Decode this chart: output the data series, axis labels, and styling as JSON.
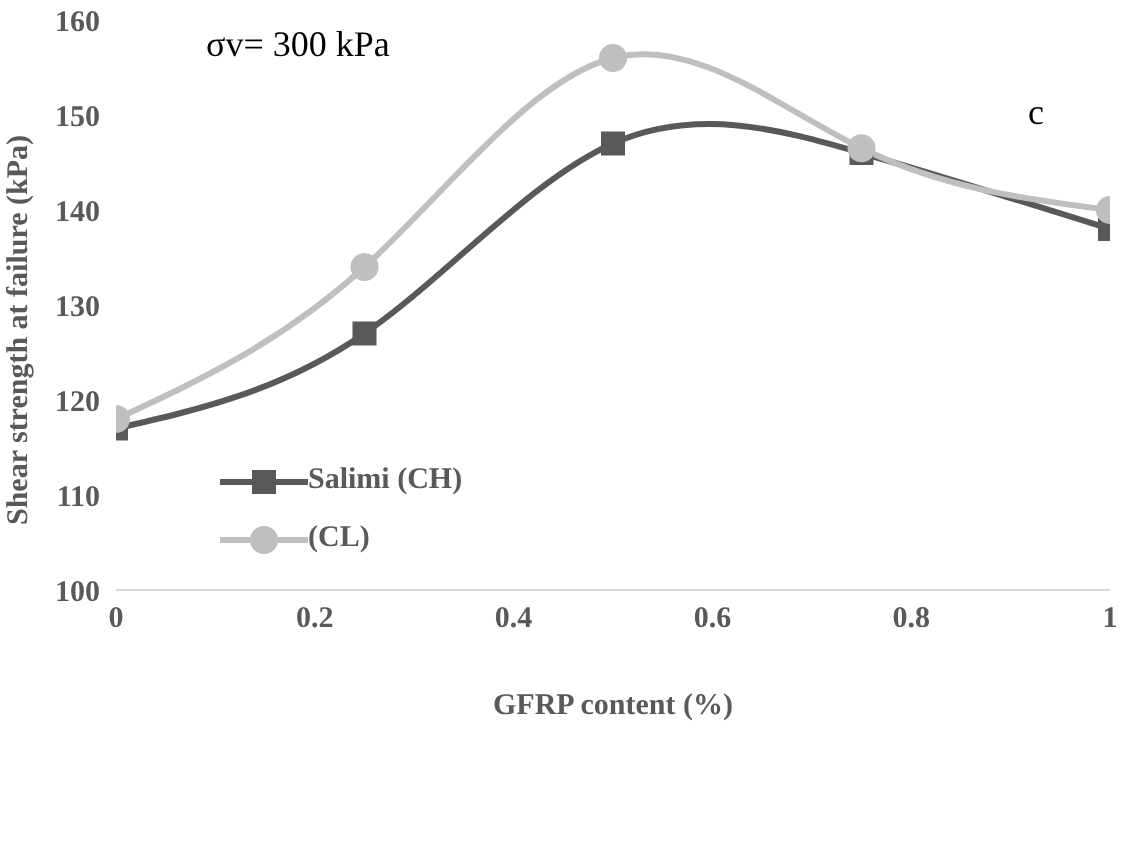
{
  "chart_data": {
    "type": "line",
    "xlabel": "GFRP content (%)",
    "ylabel": "Shear strength at failure (kPa)",
    "x": [
      0,
      0.25,
      0.5,
      0.75,
      1
    ],
    "series": [
      {
        "name": "Salimi (CH)",
        "color": "#595959",
        "marker": "square",
        "values": [
          117,
          127,
          147,
          146,
          138
        ]
      },
      {
        "name": "(CL)",
        "color": "#bfbfbf",
        "marker": "circle",
        "values": [
          118,
          134,
          156,
          146.5,
          140
        ]
      }
    ],
    "xlim": [
      0,
      1
    ],
    "xticks": [
      0,
      0.2,
      0.4,
      0.6,
      0.8,
      1
    ],
    "ylim": [
      100,
      160
    ],
    "yticks": [
      100,
      110,
      120,
      130,
      140,
      150,
      160
    ],
    "grid": false,
    "legend": "left",
    "annotations": [
      "σv= 300 kPa",
      "c"
    ]
  }
}
